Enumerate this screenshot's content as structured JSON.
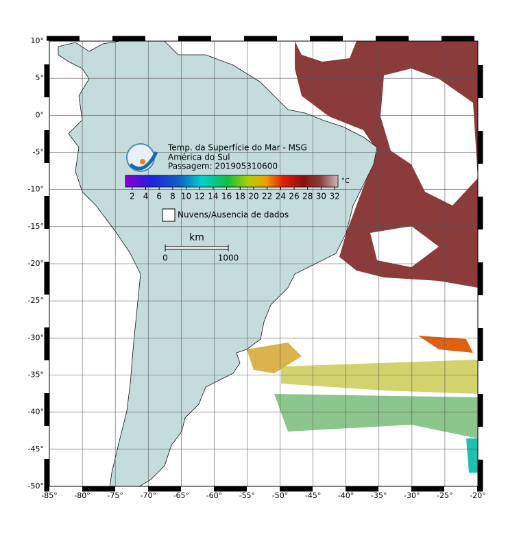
{
  "map": {
    "title": "Temp. da Superfície do Mar - MSG",
    "region": "América do Sul",
    "pass": "Passagem: 201905310600",
    "xlim": [
      -85,
      -20
    ],
    "ylim": [
      -50,
      10
    ],
    "xticks": [
      {
        "value": -85,
        "label": "-85°"
      },
      {
        "value": -80,
        "label": "-80°"
      },
      {
        "value": -75,
        "label": "-75°"
      },
      {
        "value": -70,
        "label": "-70°"
      },
      {
        "value": -65,
        "label": "-65°"
      },
      {
        "value": -60,
        "label": "-60°"
      },
      {
        "value": -55,
        "label": "-55°"
      },
      {
        "value": -50,
        "label": "-50°"
      },
      {
        "value": -45,
        "label": "-45°"
      },
      {
        "value": -40,
        "label": "-40°"
      },
      {
        "value": -35,
        "label": "-35°"
      },
      {
        "value": -30,
        "label": "-30°"
      },
      {
        "value": -25,
        "label": "-25°"
      },
      {
        "value": -20,
        "label": "-20°"
      }
    ],
    "yticks": [
      {
        "value": 10,
        "label": "10°"
      },
      {
        "value": 5,
        "label": "5°"
      },
      {
        "value": 0,
        "label": "0°"
      },
      {
        "value": -5,
        "label": "-5°"
      },
      {
        "value": -10,
        "label": "-10°"
      },
      {
        "value": -15,
        "label": "-15°"
      },
      {
        "value": -20,
        "label": "-20°"
      },
      {
        "value": -25,
        "label": "-25°"
      },
      {
        "value": -30,
        "label": "-30°"
      },
      {
        "value": -35,
        "label": "-35°"
      },
      {
        "value": -40,
        "label": "-40°"
      },
      {
        "value": -45,
        "label": "-45°"
      },
      {
        "value": -50,
        "label": "-50°"
      }
    ],
    "grid": true,
    "colorbar": {
      "unit": "°C",
      "lim": [
        1,
        32.5
      ],
      "ticks": [
        2,
        4,
        6,
        8,
        10,
        12,
        14,
        16,
        18,
        20,
        22,
        24,
        26,
        28,
        30,
        32
      ]
    },
    "legend": "Nuvens/Ausencia de dados",
    "scale": {
      "unit": "km",
      "ticks": [
        0,
        1000
      ]
    }
  }
}
